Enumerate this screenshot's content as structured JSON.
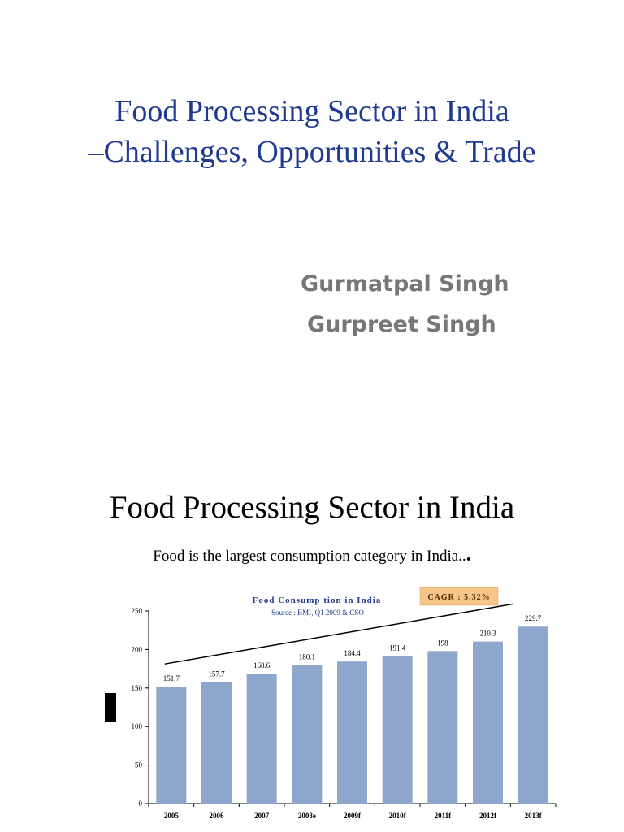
{
  "slide1": {
    "title_line1": "Food Processing Sector in India",
    "title_line2": "–Challenges, Opportunities & Trade",
    "authors": [
      "Gurmatpal Singh",
      "Gurpreet Singh"
    ]
  },
  "slide2": {
    "title": "Food Processing Sector in India",
    "subtitle": "Food is the largest consumption category in India..",
    "subtitle_dot": "."
  },
  "chart_data": {
    "type": "bar",
    "title": "Food Consump tion in India",
    "subtitle": "Source : BMI, Q1 2009 & CSO",
    "badge": "CAGR : 5.32%",
    "categories": [
      "2005",
      "2006",
      "2007",
      "2008e",
      "2009f",
      "2010f",
      "2011f",
      "2012f",
      "2013f"
    ],
    "values": [
      151.7,
      157.7,
      168.6,
      180.1,
      184.4,
      191.4,
      198,
      210.3,
      229.7
    ],
    "value_labels": [
      "151.7",
      "157.7",
      "168.6",
      "180.1",
      "184.4",
      "191.4",
      "198",
      "210.3",
      "229.7"
    ],
    "yticks": [
      0,
      50,
      100,
      150,
      200,
      250
    ],
    "ylim": [
      0,
      250
    ],
    "bar_color": "#8ea6cc",
    "badge_color": "#f5c58a",
    "title_color": "#1f3a8f",
    "trend_line": true
  }
}
